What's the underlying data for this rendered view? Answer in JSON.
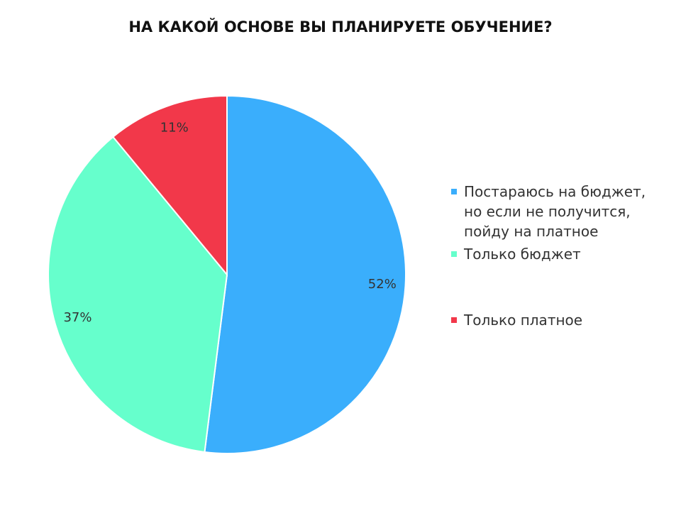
{
  "chart_data": {
    "type": "pie",
    "title": "НА КАКОЙ ОСНОВЕ ВЫ ПЛАНИРУЕТЕ ОБУЧЕНИЕ?",
    "categories": [
      "Постараюсь на бюджет, но если не получится, пойду на платное",
      "Только бюджет",
      "Только платное"
    ],
    "values": [
      52,
      37,
      11
    ],
    "value_labels": [
      "52%",
      "37%",
      "11%"
    ],
    "colors": [
      "#3aaefc",
      "#66ffcc",
      "#f2384a"
    ]
  }
}
